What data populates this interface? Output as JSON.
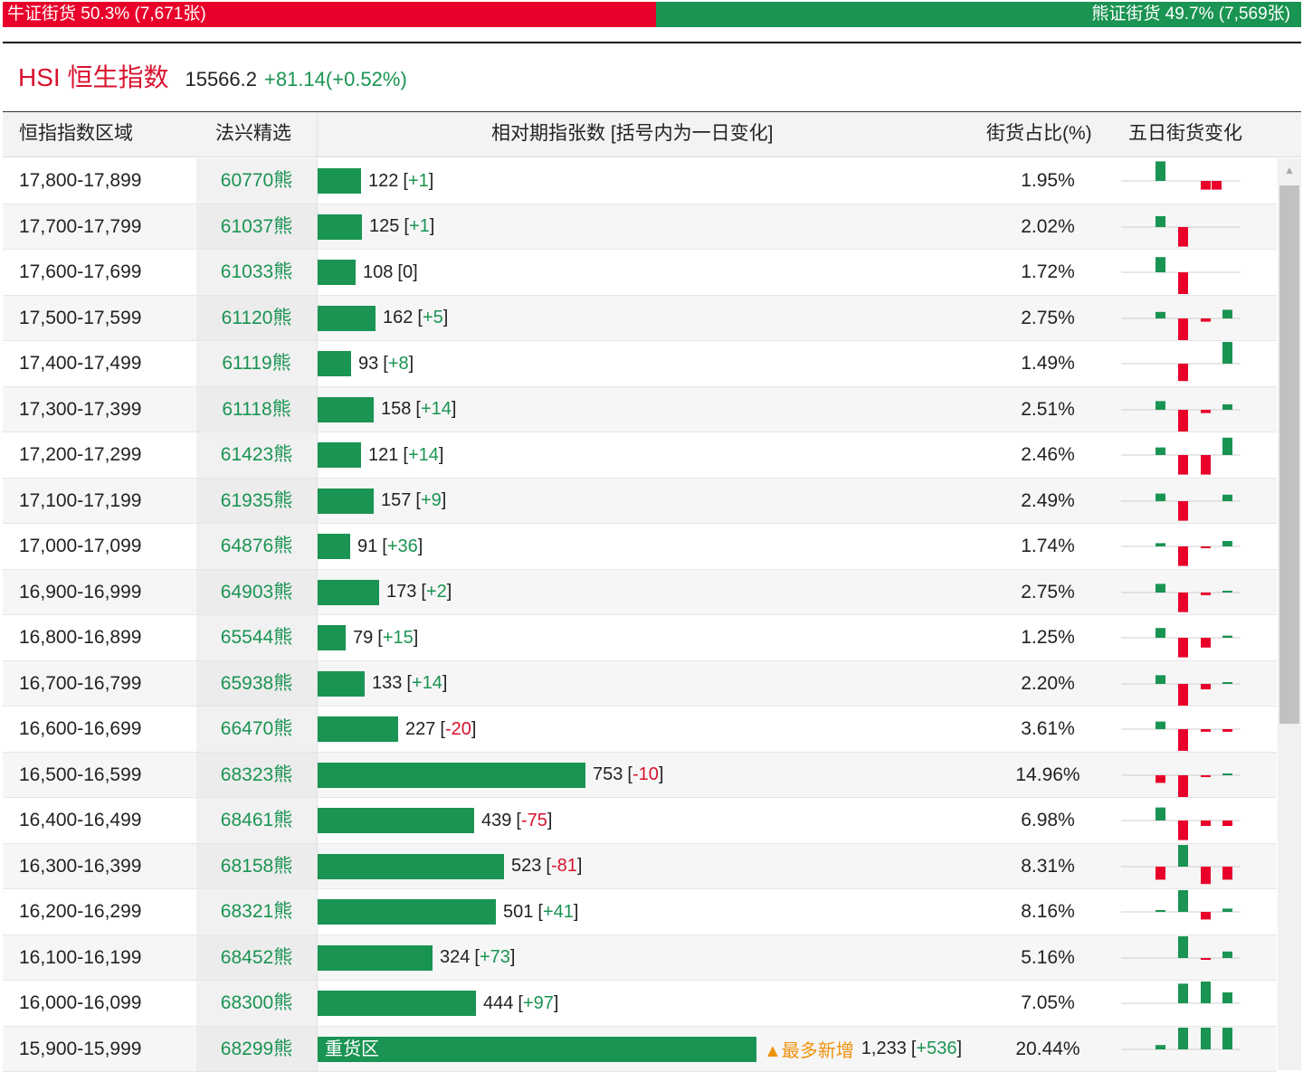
{
  "ratio_bar": {
    "bull_label": "牛证街货",
    "bull_stat": "50.3% (7,671张)",
    "bull_share": 0.503,
    "bear_label": "熊证街货",
    "bear_stat": "49.7% (7,569张)",
    "colors": {
      "bull": "#e8002a",
      "bear": "#1a9452"
    }
  },
  "index": {
    "name": "HSI 恒生指数",
    "value": "15566.2",
    "change": "+81.14(+0.52%)"
  },
  "table": {
    "headers": {
      "range": "恒指指数区域",
      "warrant": "法兴精选",
      "dist": "相对期指张数 [括号内为一日变化]",
      "pct": "街货占比(%)",
      "trend": "五日街货变化"
    },
    "max_count": 1233,
    "rows": [
      {
        "range": "17,800-17,899",
        "warrant": "60770熊",
        "count": 122,
        "count_text": "122",
        "delta": "+1",
        "pct": "1.95%",
        "trend": [
          0.9,
          0,
          -0.4,
          -0.4,
          0
        ]
      },
      {
        "range": "17,700-17,799",
        "warrant": "61037熊",
        "count": 125,
        "count_text": "125",
        "delta": "+1",
        "pct": "2.02%",
        "trend": [
          0.5,
          -0.9,
          0,
          0,
          0
        ]
      },
      {
        "range": "17,600-17,699",
        "warrant": "61033熊",
        "count": 108,
        "count_text": "108",
        "delta": "0",
        "pct": "1.72%",
        "trend": [
          0.7,
          -1,
          0,
          0,
          0
        ]
      },
      {
        "range": "17,500-17,599",
        "warrant": "61120熊",
        "count": 162,
        "count_text": "162",
        "delta": "+5",
        "pct": "2.75%",
        "trend": [
          0.3,
          -1,
          -0.15,
          0,
          0.4
        ]
      },
      {
        "range": "17,400-17,499",
        "warrant": "61119熊",
        "count": 93,
        "count_text": "93",
        "delta": "+8",
        "pct": "1.49%",
        "trend": [
          0,
          -0.8,
          0,
          0,
          1
        ]
      },
      {
        "range": "17,300-17,399",
        "warrant": "61118熊",
        "count": 158,
        "count_text": "158",
        "delta": "+14",
        "pct": "2.51%",
        "trend": [
          0.4,
          -1,
          -0.15,
          0,
          0.25
        ]
      },
      {
        "range": "17,200-17,299",
        "warrant": "61423熊",
        "count": 121,
        "count_text": "121",
        "delta": "+14",
        "pct": "2.46%",
        "trend": [
          0.35,
          -0.9,
          -0.9,
          0,
          0.8
        ]
      },
      {
        "range": "17,100-17,199",
        "warrant": "61935熊",
        "count": 157,
        "count_text": "157",
        "delta": "+9",
        "pct": "2.49%",
        "trend": [
          0.35,
          -0.9,
          0,
          0,
          0.3
        ]
      },
      {
        "range": "17,000-17,099",
        "warrant": "64876熊",
        "count": 91,
        "count_text": "91",
        "delta": "+36",
        "pct": "1.74%",
        "trend": [
          0.15,
          -0.9,
          -0.08,
          0,
          0.25
        ]
      },
      {
        "range": "16,900-16,999",
        "warrant": "64903熊",
        "count": 173,
        "count_text": "173",
        "delta": "+2",
        "pct": "2.75%",
        "trend": [
          0.4,
          -0.9,
          -0.12,
          0,
          0.06
        ]
      },
      {
        "range": "16,800-16,899",
        "warrant": "65544熊",
        "count": 79,
        "count_text": "79",
        "delta": "+15",
        "pct": "1.25%",
        "trend": [
          0.45,
          -0.9,
          -0.45,
          0,
          0.1
        ]
      },
      {
        "range": "16,700-16,799",
        "warrant": "65938熊",
        "count": 133,
        "count_text": "133",
        "delta": "+14",
        "pct": "2.20%",
        "trend": [
          0.4,
          -1,
          -0.25,
          0,
          0.06
        ]
      },
      {
        "range": "16,600-16,699",
        "warrant": "66470熊",
        "count": 227,
        "count_text": "227",
        "delta": "-20",
        "pct": "3.61%",
        "trend": [
          0.35,
          -1,
          -0.12,
          0,
          -0.12
        ]
      },
      {
        "range": "16,500-16,599",
        "warrant": "68323熊",
        "count": 753,
        "count_text": "753",
        "delta": "-10",
        "pct": "14.96%",
        "trend": [
          -0.35,
          -1,
          -0.08,
          0,
          0.06
        ]
      },
      {
        "range": "16,400-16,499",
        "warrant": "68461熊",
        "count": 439,
        "count_text": "439",
        "delta": "-75",
        "pct": "6.98%",
        "trend": [
          0.6,
          -0.9,
          -0.25,
          0,
          -0.25
        ]
      },
      {
        "range": "16,300-16,399",
        "warrant": "68158熊",
        "count": 523,
        "count_text": "523",
        "delta": "-81",
        "pct": "8.31%",
        "trend": [
          -0.6,
          1,
          -0.8,
          0,
          -0.6
        ]
      },
      {
        "range": "16,200-16,299",
        "warrant": "68321熊",
        "count": 501,
        "count_text": "501",
        "delta": "+41",
        "pct": "8.16%",
        "trend": [
          0.06,
          1,
          -0.35,
          0,
          0.15
        ]
      },
      {
        "range": "16,100-16,199",
        "warrant": "68452熊",
        "count": 324,
        "count_text": "324",
        "delta": "+73",
        "pct": "5.16%",
        "trend": [
          0,
          1,
          -0.08,
          0,
          0.3
        ]
      },
      {
        "range": "16,000-16,099",
        "warrant": "68300熊",
        "count": 444,
        "count_text": "444",
        "delta": "+97",
        "pct": "7.05%",
        "trend": [
          0,
          0.9,
          1,
          0,
          0.5
        ]
      },
      {
        "range": "15,900-15,999",
        "warrant": "68299熊",
        "count": 1233,
        "count_text": "1,233",
        "delta": "+536",
        "pct": "20.44%",
        "trend": [
          0.2,
          1,
          1,
          0,
          1
        ],
        "bar_label": "重货区",
        "badge": "▲最多新增"
      }
    ]
  }
}
